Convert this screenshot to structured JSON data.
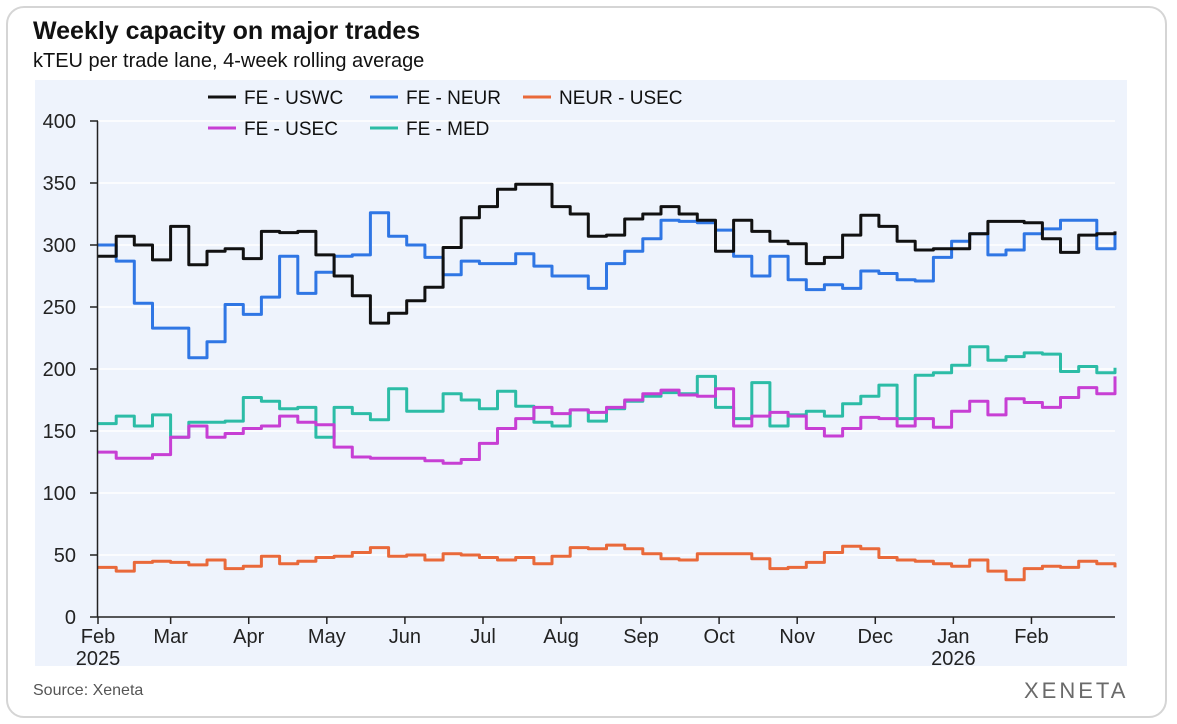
{
  "header": {
    "title": "Weekly capacity on major trades",
    "subtitle": "kTEU per trade lane, 4-week rolling average"
  },
  "footer": {
    "source": "Source: Xeneta",
    "brand": "XENETA"
  },
  "chart_data": {
    "type": "line",
    "title": "Weekly capacity on major trades",
    "subtitle": "kTEU per trade lane, 4-week rolling average",
    "ylabel": "",
    "xlabel": "",
    "ylim": [
      0,
      400
    ],
    "yticks": [
      0,
      50,
      100,
      150,
      200,
      250,
      300,
      350,
      400
    ],
    "xlim": [
      0,
      56
    ],
    "xticks": [
      {
        "x": 0,
        "label": "Feb",
        "year": "2025"
      },
      {
        "x": 4,
        "label": "Mar"
      },
      {
        "x": 8.3,
        "label": "Apr"
      },
      {
        "x": 12.6,
        "label": "May"
      },
      {
        "x": 16.9,
        "label": "Jun"
      },
      {
        "x": 21.2,
        "label": "Jul"
      },
      {
        "x": 25.5,
        "label": "Aug"
      },
      {
        "x": 29.9,
        "label": "Sep"
      },
      {
        "x": 34.2,
        "label": "Oct"
      },
      {
        "x": 38.5,
        "label": "Nov"
      },
      {
        "x": 42.8,
        "label": "Dec"
      },
      {
        "x": 47.1,
        "label": "Jan",
        "year": "2026"
      },
      {
        "x": 51.4,
        "label": "Feb"
      }
    ],
    "legend": "top, two rows",
    "series": [
      {
        "name": "FE - USWC",
        "color": "#111111",
        "values": [
          291,
          307,
          300,
          288,
          315,
          284,
          295,
          297,
          289,
          311,
          310,
          311,
          292,
          275,
          259,
          237,
          245,
          255,
          266,
          298,
          322,
          331,
          345,
          349,
          349,
          331,
          325,
          307,
          308,
          321,
          325,
          331,
          325,
          320,
          295,
          320,
          311,
          303,
          301,
          285,
          290,
          308,
          324,
          315,
          303,
          296,
          297,
          297,
          309,
          319,
          319,
          318,
          305,
          294,
          308,
          309,
          311
        ]
      },
      {
        "name": "FE - NEUR",
        "color": "#2f76e4",
        "values": [
          300,
          287,
          253,
          233,
          233,
          209,
          222,
          252,
          244,
          258,
          291,
          261,
          278,
          291,
          292,
          326,
          307,
          300,
          290,
          276,
          287,
          285,
          285,
          293,
          283,
          275,
          275,
          265,
          285,
          295,
          305,
          320,
          319,
          318,
          312,
          291,
          275,
          291,
          272,
          264,
          268,
          265,
          279,
          277,
          272,
          271,
          290,
          303,
          309,
          292,
          296,
          309,
          313,
          320,
          320,
          297,
          310
        ]
      },
      {
        "name": "NEUR - USEC",
        "color": "#e9693a",
        "values": [
          40,
          37,
          44,
          45,
          44,
          42,
          46,
          39,
          41,
          49,
          43,
          45,
          48,
          49,
          52,
          56,
          49,
          50,
          46,
          51,
          50,
          48,
          46,
          48,
          43,
          49,
          56,
          55,
          58,
          55,
          51,
          47,
          46,
          51,
          51,
          51,
          47,
          39,
          40,
          44,
          52,
          57,
          55,
          48,
          46,
          45,
          43,
          41,
          46,
          37,
          30,
          39,
          41,
          40,
          45,
          43,
          40
        ]
      },
      {
        "name": "FE - USEC",
        "color": "#c73fd4",
        "values": [
          133,
          128,
          128,
          131,
          145,
          154,
          145,
          148,
          152,
          154,
          162,
          157,
          155,
          137,
          129,
          128,
          128,
          128,
          126,
          124,
          127,
          140,
          152,
          160,
          169,
          164,
          167,
          165,
          169,
          175,
          180,
          183,
          179,
          178,
          184,
          154,
          162,
          165,
          162,
          152,
          146,
          152,
          161,
          160,
          154,
          160,
          153,
          166,
          174,
          163,
          176,
          173,
          169,
          177,
          185,
          180,
          194
        ]
      },
      {
        "name": "FE - MED",
        "color": "#2cbca6",
        "values": [
          156,
          162,
          154,
          163,
          145,
          157,
          157,
          158,
          177,
          174,
          168,
          169,
          145,
          169,
          164,
          159,
          184,
          166,
          166,
          180,
          175,
          168,
          182,
          170,
          157,
          154,
          167,
          158,
          168,
          174,
          178,
          181,
          180,
          194,
          169,
          160,
          189,
          154,
          163,
          166,
          162,
          172,
          178,
          187,
          160,
          195,
          197,
          203,
          218,
          207,
          210,
          213,
          212,
          198,
          202,
          197,
          201
        ]
      }
    ]
  }
}
